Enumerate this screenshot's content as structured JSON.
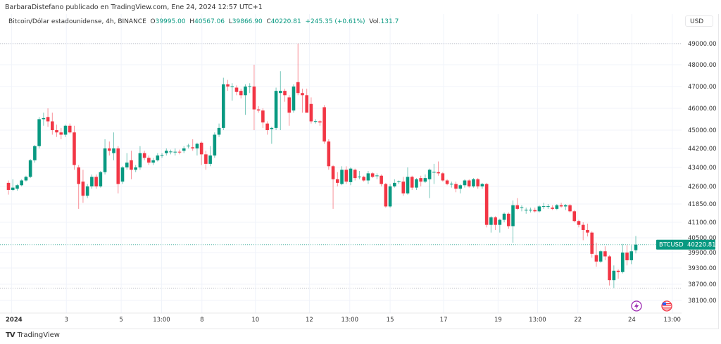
{
  "publisher": "BarbaraDistefano publicado en TradingView.com, Ene 24, 2024 12:57 UTC+1",
  "legend": {
    "symbol": "Bitcoin/Dólar estadounidense, 4h, BINANCE",
    "o_label": "O",
    "o": "39995.00",
    "h_label": "H",
    "h": "40567.06",
    "l_label": "L",
    "l": "39866.90",
    "c_label": "C",
    "c": "40220.81",
    "change": "+245.35 (+0.61%)",
    "vol_label": "Vol.",
    "vol": "131.7"
  },
  "currency_button": "USD",
  "footer": {
    "logo": "TV",
    "brand": "TradingView"
  },
  "colors": {
    "up": "#089981",
    "down": "#f23645",
    "grid": "#f0f3fa"
  },
  "icons": [
    "lightning-event-icon",
    "us-flag-event-icon"
  ],
  "chart_data": {
    "type": "candlestick",
    "symbol_tag": "BTCUSD",
    "last_price": "40220.81",
    "last_price_value": 40220.81,
    "y_scale": "log",
    "y_ticks": [
      {
        "v": 49000,
        "label": "49000.00"
      },
      {
        "v": 48000,
        "label": "48000.00"
      },
      {
        "v": 47000,
        "label": "47000.00"
      },
      {
        "v": 46000,
        "label": "46000.00"
      },
      {
        "v": 45000,
        "label": "45000.00"
      },
      {
        "v": 44200,
        "label": "44200.00"
      },
      {
        "v": 43400,
        "label": "43400.00"
      },
      {
        "v": 42600,
        "label": "42600.00"
      },
      {
        "v": 41850,
        "label": "41850.00"
      },
      {
        "v": 41100,
        "label": "41100.00"
      },
      {
        "v": 40500,
        "label": "40500.00"
      },
      {
        "v": 39900,
        "label": "39900.00"
      },
      {
        "v": 39300,
        "label": "39300.00"
      },
      {
        "v": 38700,
        "label": "38700.00"
      },
      {
        "v": 38100,
        "label": "38100.00"
      }
    ],
    "x_ticks": [
      {
        "label": "2024",
        "bold": true,
        "i": 0.7
      },
      {
        "label": "3",
        "i": 13.2
      },
      {
        "label": "5",
        "i": 25.7
      },
      {
        "label": "13:00",
        "i": 34.9
      },
      {
        "label": "8",
        "i": 44.1
      },
      {
        "label": "10",
        "i": 56.3
      },
      {
        "label": "12",
        "i": 68.6
      },
      {
        "label": "13:00",
        "i": 77.8
      },
      {
        "label": "15",
        "i": 87
      },
      {
        "label": "17",
        "i": 99.2
      },
      {
        "label": "19",
        "i": 111.6
      },
      {
        "label": "13:00",
        "i": 120.6
      },
      {
        "label": "22",
        "i": 129.8
      },
      {
        "label": "24",
        "i": 142.1
      },
      {
        "label": "13:00",
        "i": 151.3
      }
    ],
    "period_high": 49000,
    "period_low": 38550,
    "candles_ohlc": [
      [
        42750,
        42850,
        42250,
        42450
      ],
      [
        42450,
        42900,
        42400,
        42550
      ],
      [
        42500,
        42700,
        42420,
        42650
      ],
      [
        42650,
        42900,
        42600,
        42850
      ],
      [
        42850,
        43050,
        42800,
        43000
      ],
      [
        43000,
        43750,
        42950,
        43700
      ],
      [
        43700,
        44350,
        43600,
        44300
      ],
      [
        44300,
        45600,
        44200,
        45500
      ],
      [
        45500,
        45800,
        45200,
        45550
      ],
      [
        45600,
        46000,
        45150,
        45400
      ],
      [
        45400,
        45800,
        44800,
        45000
      ],
      [
        45000,
        45250,
        44700,
        44900
      ],
      [
        44900,
        45100,
        44600,
        44800
      ],
      [
        44800,
        45250,
        44700,
        45200
      ],
      [
        45200,
        45300,
        44850,
        44900
      ],
      [
        44900,
        45200,
        43300,
        43500
      ],
      [
        43400,
        43500,
        41650,
        42700
      ],
      [
        42800,
        43300,
        41900,
        42200
      ],
      [
        42200,
        42700,
        42100,
        42600
      ],
      [
        42600,
        43100,
        42500,
        43000
      ],
      [
        43000,
        43100,
        42500,
        42600
      ],
      [
        42600,
        43250,
        42550,
        43200
      ],
      [
        43200,
        44600,
        43100,
        44200
      ],
      [
        44200,
        44500,
        43900,
        44100
      ],
      [
        44000,
        44900,
        43700,
        44200
      ],
      [
        44200,
        44300,
        42300,
        42700
      ],
      [
        42800,
        43450,
        42700,
        43400
      ],
      [
        43400,
        44000,
        43300,
        43600
      ],
      [
        43700,
        44100,
        42900,
        43300
      ],
      [
        43300,
        43500,
        43200,
        43400
      ],
      [
        43400,
        44300,
        43300,
        44000
      ],
      [
        44000,
        44100,
        43700,
        43800
      ],
      [
        43800,
        43900,
        43500,
        43600
      ],
      [
        43600,
        43800,
        43500,
        43700
      ],
      [
        43700,
        44000,
        43650,
        43900
      ],
      [
        43900,
        44000,
        43800,
        43920
      ],
      [
        44000,
        44200,
        43900,
        44100
      ],
      [
        44050,
        44150,
        43950,
        44070
      ],
      [
        44050,
        44200,
        43900,
        44060
      ],
      [
        44060,
        44150,
        43950,
        44050
      ],
      [
        44100,
        44300,
        44000,
        44200
      ],
      [
        44300,
        44400,
        44200,
        44320
      ],
      [
        44250,
        44600,
        44100,
        44200
      ],
      [
        44200,
        44450,
        43900,
        44400
      ],
      [
        44450,
        44500,
        43500,
        43950
      ],
      [
        43950,
        44100,
        43300,
        43550
      ],
      [
        43550,
        44300,
        43450,
        43900
      ],
      [
        43900,
        44900,
        43800,
        44800
      ],
      [
        44800,
        45300,
        44700,
        45100
      ],
      [
        45100,
        47400,
        45000,
        47100
      ],
      [
        47100,
        47300,
        46800,
        47000
      ],
      [
        47000,
        47150,
        46350,
        47000
      ],
      [
        46950,
        47050,
        46600,
        46750
      ],
      [
        46800,
        46900,
        46450,
        46600
      ],
      [
        46600,
        47100,
        45700,
        47000
      ],
      [
        47000,
        47150,
        46700,
        47010
      ],
      [
        47000,
        48000,
        45000,
        45950
      ],
      [
        45950,
        46100,
        45800,
        45900
      ],
      [
        45900,
        46000,
        45100,
        45350
      ],
      [
        45300,
        45400,
        44800,
        45000
      ],
      [
        45050,
        45150,
        44400,
        45100
      ],
      [
        45100,
        46950,
        45000,
        46800
      ],
      [
        46700,
        47700,
        45000,
        46800
      ],
      [
        46800,
        46900,
        46300,
        46600
      ],
      [
        46500,
        46600,
        45200,
        45800
      ],
      [
        45900,
        47100,
        45800,
        47000
      ],
      [
        47200,
        49000,
        46600,
        46700
      ],
      [
        46700,
        46900,
        45800,
        46600
      ],
      [
        46600,
        46900,
        45900,
        45800
      ],
      [
        46200,
        46500,
        45300,
        45400
      ],
      [
        45400,
        45500,
        45300,
        45410
      ],
      [
        45400,
        45450,
        45200,
        45350
      ],
      [
        46050,
        46150,
        44400,
        44500
      ],
      [
        44500,
        44600,
        43300,
        43450
      ],
      [
        43450,
        43500,
        41650,
        42900
      ],
      [
        42900,
        43200,
        42600,
        42750
      ],
      [
        42700,
        43450,
        42650,
        43300
      ],
      [
        43300,
        43450,
        42700,
        42800
      ],
      [
        42780,
        43400,
        42650,
        43350
      ],
      [
        43300,
        43350,
        42850,
        42950
      ],
      [
        43000,
        43250,
        42900,
        43010
      ],
      [
        43000,
        43050,
        42800,
        42850
      ],
      [
        42850,
        43250,
        42700,
        43150
      ],
      [
        43150,
        43200,
        42950,
        43000
      ],
      [
        43050,
        43150,
        42900,
        43060
      ],
      [
        43050,
        43100,
        42600,
        42700
      ],
      [
        42700,
        42750,
        41700,
        41750
      ],
      [
        41750,
        42700,
        41700,
        42600
      ],
      [
        42600,
        42900,
        42550,
        42750
      ],
      [
        42800,
        42850,
        42700,
        42810
      ],
      [
        42800,
        43000,
        42200,
        42300
      ],
      [
        42300,
        43400,
        42250,
        43000
      ],
      [
        43000,
        43050,
        42450,
        42550
      ],
      [
        42550,
        42950,
        42450,
        42900
      ],
      [
        42950,
        43050,
        42600,
        42800
      ],
      [
        42800,
        43100,
        42750,
        42950
      ],
      [
        42900,
        43350,
        42100,
        43300
      ],
      [
        43200,
        43550,
        42700,
        43210
      ],
      [
        43200,
        43650,
        43050,
        43150
      ],
      [
        43150,
        43200,
        42800,
        42850
      ],
      [
        42850,
        42900,
        42650,
        42700
      ],
      [
        42700,
        42800,
        42550,
        42710
      ],
      [
        42700,
        42800,
        42350,
        42500
      ],
      [
        42500,
        42700,
        42300,
        42650
      ],
      [
        42650,
        42900,
        42550,
        42850
      ],
      [
        42850,
        42900,
        42550,
        42600
      ],
      [
        42600,
        42950,
        42550,
        42900
      ],
      [
        42900,
        42950,
        42500,
        42600
      ],
      [
        42600,
        42750,
        42500,
        42700
      ],
      [
        42700,
        42750,
        40900,
        41000
      ],
      [
        41000,
        41350,
        40700,
        41300
      ],
      [
        41300,
        41350,
        40800,
        41000
      ],
      [
        41000,
        41250,
        40700,
        41200
      ],
      [
        41200,
        41500,
        41100,
        41450
      ],
      [
        41450,
        41500,
        40850,
        40950
      ],
      [
        40950,
        42000,
        40300,
        41800
      ],
      [
        41800,
        42100,
        41600,
        41650
      ],
      [
        41700,
        41800,
        41550,
        41710
      ],
      [
        41600,
        41700,
        41450,
        41610
      ],
      [
        41600,
        41700,
        41500,
        41610
      ],
      [
        41600,
        41700,
        41500,
        41550
      ],
      [
        41550,
        41800,
        41500,
        41750
      ],
      [
        41750,
        41900,
        41650,
        41760
      ],
      [
        41750,
        41850,
        41650,
        41760
      ],
      [
        41700,
        41800,
        41600,
        41650
      ],
      [
        41650,
        41850,
        41600,
        41800
      ],
      [
        41800,
        41900,
        41700,
        41750
      ],
      [
        41750,
        41850,
        41600,
        41800
      ],
      [
        41800,
        41850,
        41500,
        41550
      ],
      [
        41550,
        41600,
        41100,
        41150
      ],
      [
        41150,
        41200,
        40900,
        41000
      ],
      [
        41000,
        41100,
        40400,
        40800
      ],
      [
        40800,
        41050,
        40550,
        40700
      ],
      [
        40700,
        40750,
        39700,
        39850
      ],
      [
        39800,
        40300,
        39350,
        39550
      ],
      [
        39550,
        40000,
        39500,
        39950
      ],
      [
        39950,
        40150,
        39600,
        39750
      ],
      [
        39750,
        39800,
        38650,
        38850
      ],
      [
        38850,
        39400,
        38550,
        39200
      ],
      [
        39200,
        39250,
        38900,
        39150
      ],
      [
        39150,
        40250,
        39100,
        39900
      ],
      [
        39900,
        40200,
        39400,
        39600
      ],
      [
        39600,
        40200,
        39450,
        39950
      ],
      [
        39995,
        40567.06,
        39866.9,
        40220.81
      ]
    ]
  }
}
